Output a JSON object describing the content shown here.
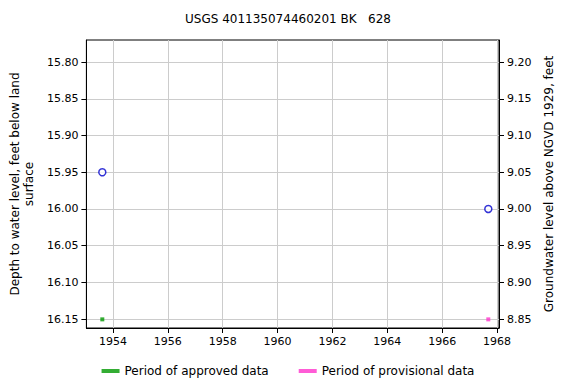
{
  "chart_data": {
    "type": "scatter",
    "title": "USGS 401135074460201 BK   628",
    "ylabel": "Depth to water level, feet below land\nsurface",
    "y2label": "Groundwater level above NGVD 1929, feet",
    "x": [
      1953.61,
      1967.68
    ],
    "values": [
      15.95,
      16.0
    ],
    "color": "#0000cc",
    "marker": "circle-open",
    "periods": [
      {
        "name": "Period of approved data",
        "color": "#009900",
        "x": [
          1953.61
        ]
      },
      {
        "name": "Period of provisional data",
        "color": "#ff33cc",
        "x": [
          1967.68
        ]
      }
    ],
    "xlim": [
      1953.03,
      1968.07
    ],
    "xticks": [
      1954,
      1956,
      1958,
      1960,
      1962,
      1964,
      1966,
      1968
    ],
    "ylim": [
      15.77,
      16.162
    ],
    "yticks": [
      {
        "value": 15.8,
        "label": "15.80"
      },
      {
        "value": 15.85,
        "label": "15.85"
      },
      {
        "value": 15.9,
        "label": "15.90"
      },
      {
        "value": 15.95,
        "label": "15.95"
      },
      {
        "value": 16,
        "label": "16.00"
      },
      {
        "value": 16.05,
        "label": "16.05"
      },
      {
        "value": 16.1,
        "label": "16.10"
      },
      {
        "value": 16.15,
        "label": "16.15"
      }
    ],
    "y2lim": [
      8.838,
      9.23
    ],
    "y2ticks": [
      {
        "value": 8.85,
        "label": "8.85"
      },
      {
        "value": 8.9,
        "label": "8.90"
      },
      {
        "value": 8.95,
        "label": "8.95"
      },
      {
        "value": 9,
        "label": "9.00"
      },
      {
        "value": 9.05,
        "label": "9.05"
      },
      {
        "value": 9.1,
        "label": "9.10"
      },
      {
        "value": 9.15,
        "label": "9.15"
      },
      {
        "value": 9.2,
        "label": "9.20"
      }
    ],
    "grid": true,
    "legend": "bottom"
  }
}
